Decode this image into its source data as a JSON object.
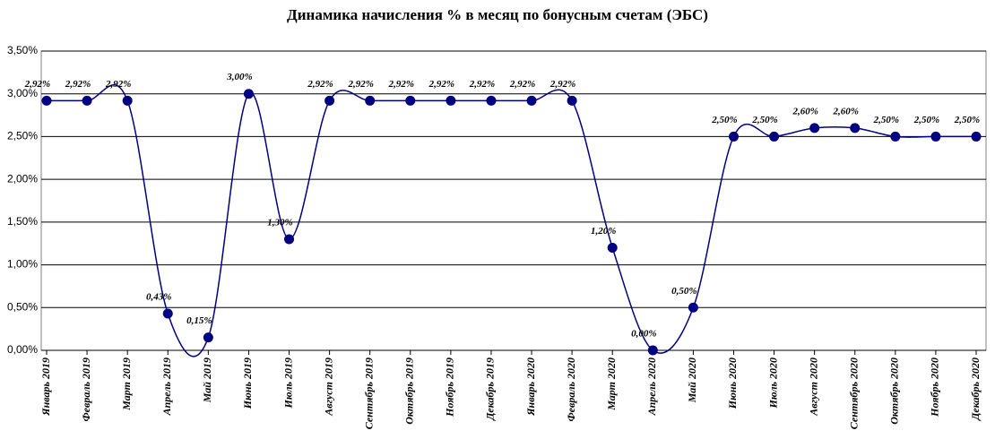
{
  "chart_data": {
    "type": "line",
    "title": "Динамика начисления % в месяц по бонусным счетам (ЭБС)",
    "categories": [
      "Январь 2019",
      "Февраль 2019",
      "Март 2019",
      "Апрель 2019",
      "Май 2019",
      "Июнь 2019",
      "Июль 2019",
      "Август 2019",
      "Сентябрь 2019",
      "Октябрь 2019",
      "Ноябрь 2019",
      "Декабрь 2019",
      "Январь 2020",
      "Февраль 2020",
      "Март 2020",
      "Апрель 2020",
      "Май 2020",
      "Июнь 2020",
      "Июль 2020",
      "Август 2020",
      "Сентябрь 2020",
      "Октябрь 2020",
      "Ноябрь 2020",
      "Декабрь 2020"
    ],
    "values": [
      2.92,
      2.92,
      2.92,
      0.43,
      0.15,
      3.0,
      1.3,
      2.92,
      2.92,
      2.92,
      2.92,
      2.92,
      2.92,
      2.92,
      1.2,
      0.0,
      0.5,
      2.5,
      2.5,
      2.6,
      2.6,
      2.5,
      2.5,
      2.5
    ],
    "value_labels": [
      "2,92%",
      "2,92%",
      "2,92%",
      "0,43%",
      "0,15%",
      "3,00%",
      "1,30%",
      "2,92%",
      "2,92%",
      "2,92%",
      "2,92%",
      "2,92%",
      "2,92%",
      "2,92%",
      "1,20%",
      "0,00%",
      "0,50%",
      "2,50%",
      "2,50%",
      "2,60%",
      "2,60%",
      "2,50%",
      "2,50%",
      "2,50%"
    ],
    "color": "#000080",
    "smooth": true,
    "grid": true,
    "ylim": [
      0,
      3.5
    ],
    "yticks": [
      {
        "value": 0,
        "label": "0,00%"
      },
      {
        "value": 0.5,
        "label": "0,50%"
      },
      {
        "value": 1,
        "label": "1,00%"
      },
      {
        "value": 1.5,
        "label": "1,50%"
      },
      {
        "value": 2,
        "label": "2,00%"
      },
      {
        "value": 2.5,
        "label": "2,50%"
      },
      {
        "value": 3,
        "label": "3,00%"
      },
      {
        "value": 3.5,
        "label": "3,50%"
      }
    ]
  }
}
